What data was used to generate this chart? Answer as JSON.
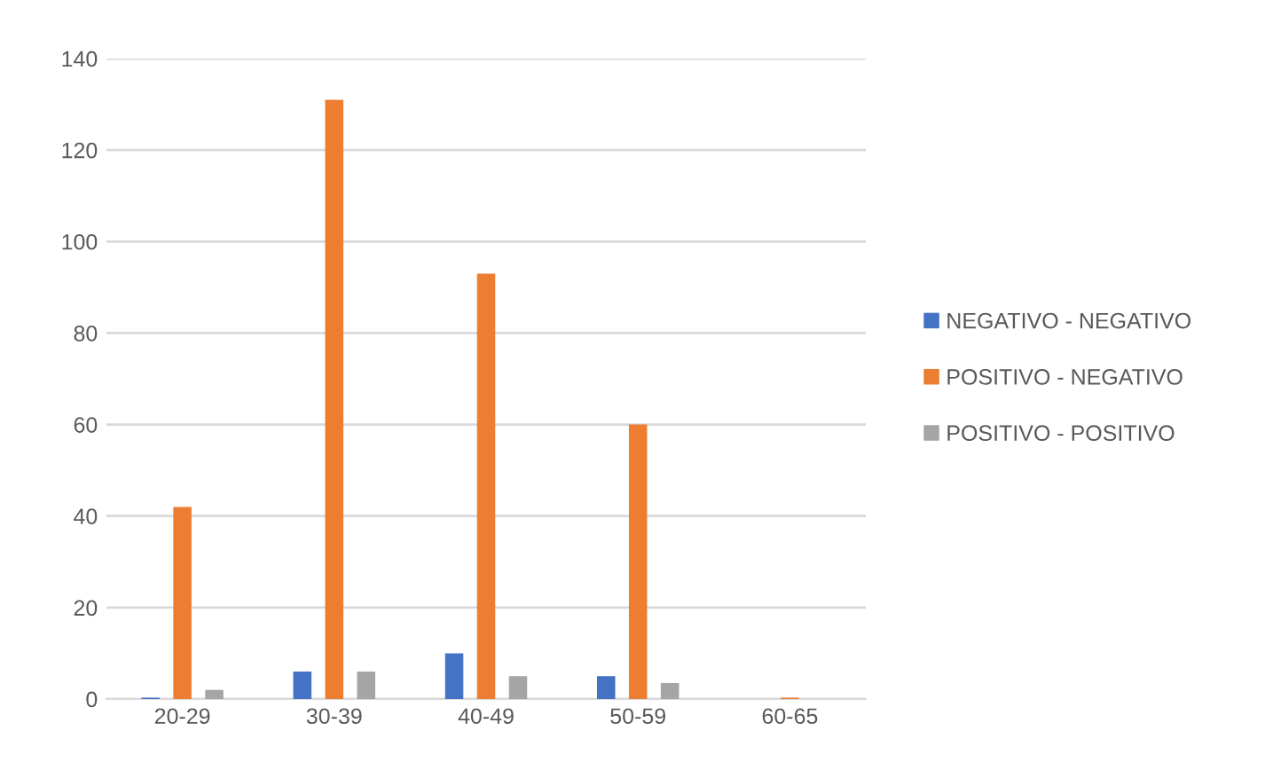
{
  "chart_data": {
    "type": "bar",
    "categories": [
      "20-29",
      "30-39",
      "40-49",
      "50-59",
      "60-65"
    ],
    "series": [
      {
        "name": "NEGATIVO - NEGATIVO",
        "color": "#4472c4",
        "values": [
          0.3,
          6,
          10,
          5,
          0
        ]
      },
      {
        "name": "POSITIVO - NEGATIVO",
        "color": "#ed7d31",
        "values": [
          42,
          131,
          93,
          60,
          0.3
        ]
      },
      {
        "name": "POSITIVO - POSITIVO",
        "color": "#a5a5a5",
        "values": [
          2,
          6,
          5,
          3.5,
          0
        ]
      }
    ],
    "ylim": [
      0,
      140
    ],
    "yticks": [
      0,
      20,
      40,
      60,
      80,
      100,
      120,
      140
    ],
    "grid": "y",
    "legend": "right"
  }
}
